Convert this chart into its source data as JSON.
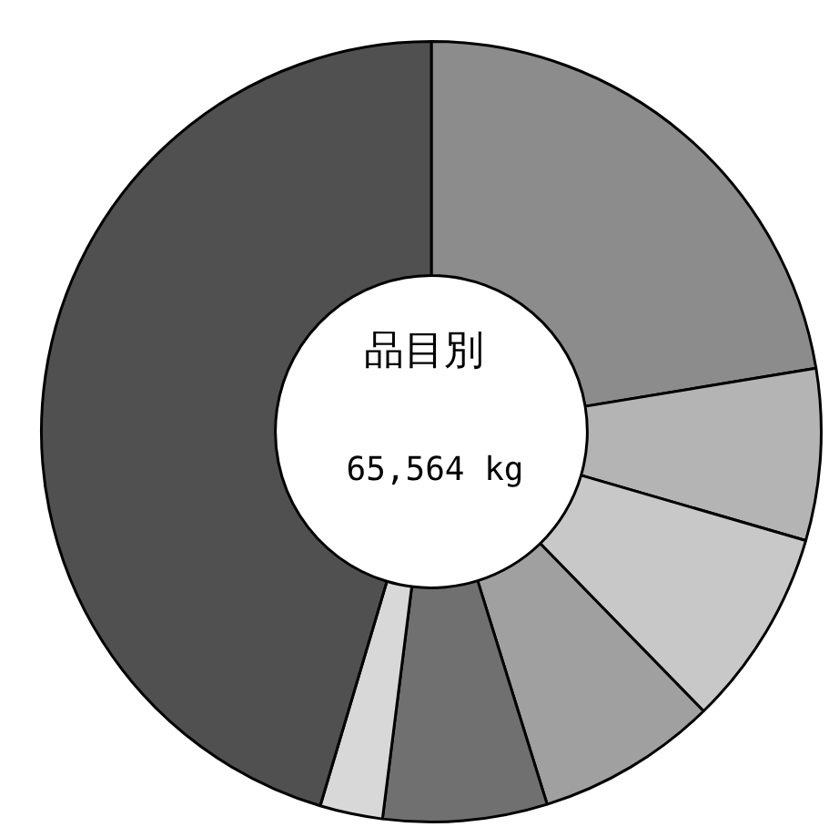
{
  "chart_data": {
    "type": "donut",
    "title": "品目別",
    "subtitle": "65,564 kg",
    "categories": [
      null,
      null,
      null,
      null,
      null,
      null,
      null
    ],
    "values": [
      22.4,
      7.1,
      8.2,
      7.5,
      6.8,
      2.6,
      45.4
    ],
    "colors": [
      "#8c8c8c",
      "#b4b4b4",
      "#c8c8c8",
      "#a0a0a0",
      "#707070",
      "#d8d8d8",
      "#505050"
    ]
  }
}
